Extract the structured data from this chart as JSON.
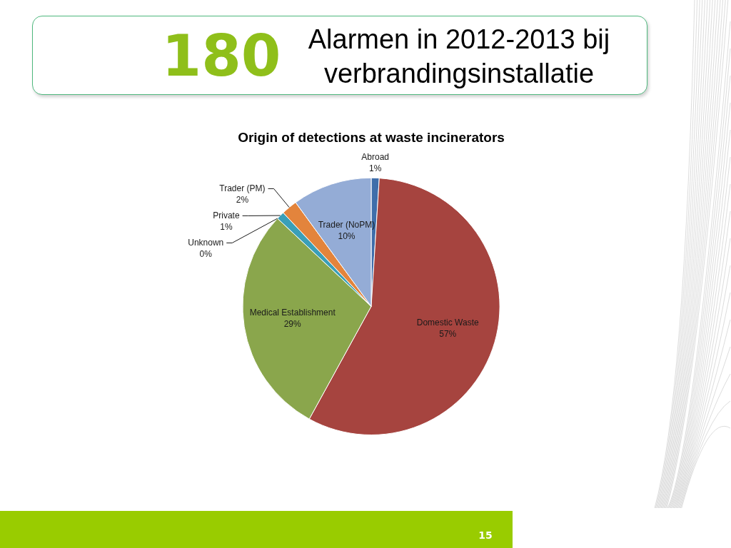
{
  "chart_data": {
    "type": "pie",
    "title": "Origin of detections at waste incinerators",
    "categories": [
      "Abroad",
      "Domestic Waste",
      "Medical Establishment",
      "Unknown",
      "Private",
      "Trader (PM)",
      "Trader (NoPM)"
    ],
    "values": [
      1,
      57,
      29,
      0,
      1,
      2,
      10
    ],
    "colors": [
      "#3f6eaa",
      "#a6443f",
      "#8aa64c",
      "#7a5aa0",
      "#3a9fb8",
      "#e3843c",
      "#94acd6"
    ],
    "value_labels": [
      "1%",
      "57%",
      "29%",
      "0%",
      "1%",
      "2%",
      "10%"
    ],
    "legend": false,
    "annotations": [
      "180",
      "Alarmen in 2012-2013 bij verbrandingsinstallatie",
      "15"
    ]
  }
}
